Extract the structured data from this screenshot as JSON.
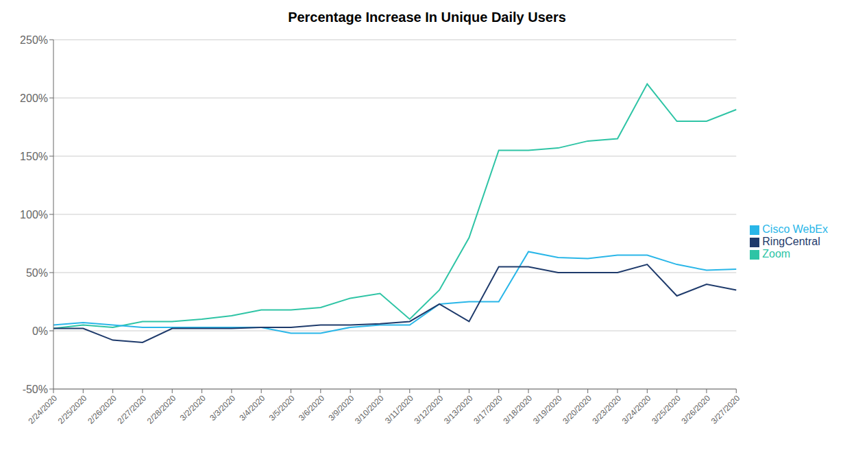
{
  "chart_data": {
    "type": "line",
    "title": "Percentage Increase In Unique Daily Users",
    "categories": [
      "2/24/2020",
      "2/25/2020",
      "2/26/2020",
      "2/27/2020",
      "2/28/2020",
      "3/2/2020",
      "3/3/2020",
      "3/4/2020",
      "3/5/2020",
      "3/6/2020",
      "3/9/2020",
      "3/10/2020",
      "3/11/2020",
      "3/12/2020",
      "3/13/2020",
      "3/17/2020",
      "3/18/2020",
      "3/19/2020",
      "3/20/2020",
      "3/23/2020",
      "3/24/2020",
      "3/25/2020",
      "3/26/2020",
      "3/27/2020"
    ],
    "series": [
      {
        "name": "Zoom",
        "color": "#2ec4a5",
        "values": [
          2,
          5,
          3,
          8,
          8,
          10,
          13,
          18,
          18,
          20,
          28,
          32,
          10,
          35,
          80,
          155,
          155,
          157,
          163,
          165,
          212,
          180,
          180,
          190
        ]
      },
      {
        "name": "Cisco WebEx",
        "color": "#29b6e8",
        "values": [
          5,
          7,
          5,
          3,
          3,
          3,
          3,
          3,
          -2,
          -2,
          3,
          5,
          5,
          23,
          25,
          25,
          68,
          63,
          62,
          65,
          65,
          57,
          52,
          53
        ]
      },
      {
        "name": "RingCentral",
        "color": "#1e3a6b",
        "values": [
          2,
          2,
          -8,
          -10,
          2,
          2,
          2,
          3,
          3,
          5,
          5,
          6,
          8,
          23,
          8,
          55,
          55,
          50,
          50,
          50,
          57,
          30,
          40,
          35
        ]
      }
    ],
    "ylim": [
      -50,
      250
    ],
    "yticks": [
      {
        "value": -50,
        "label": "-50%"
      },
      {
        "value": 0,
        "label": "0%"
      },
      {
        "value": 50,
        "label": "50%"
      },
      {
        "value": 100,
        "label": "100%"
      },
      {
        "value": 150,
        "label": "150%"
      },
      {
        "value": 200,
        "label": "200%"
      },
      {
        "value": 250,
        "label": "250%"
      }
    ],
    "grid": true,
    "legend": "right"
  }
}
